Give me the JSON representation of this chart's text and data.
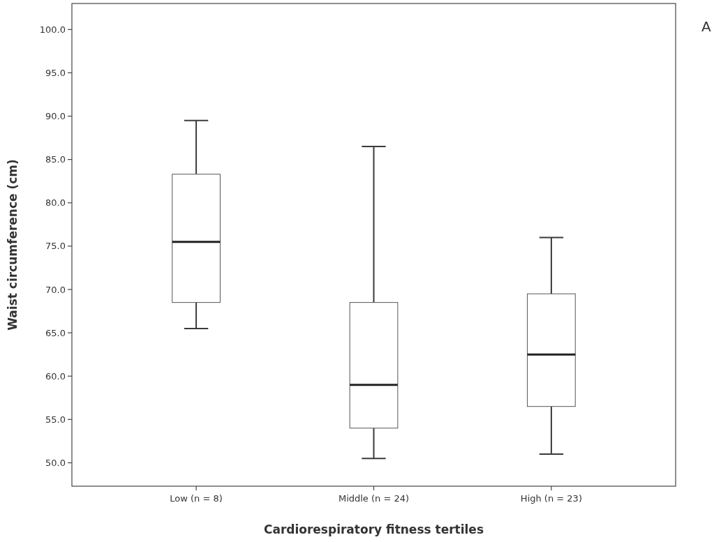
{
  "chart_data": {
    "type": "box",
    "xlabel": "Cardiorespiratory fitness tertiles",
    "ylabel": "Waist circumference (cm)",
    "annotations": [
      "A"
    ],
    "categories": [
      "Low (n = 8)",
      "Middle (n = 24)",
      "High (n = 23)"
    ],
    "boxes": [
      {
        "low": 65.5,
        "q1": 68.5,
        "median": 75.5,
        "q3": 83.3,
        "high": 89.5
      },
      {
        "low": 50.5,
        "q1": 54.0,
        "median": 59.0,
        "q3": 68.5,
        "high": 86.5
      },
      {
        "low": 51.0,
        "q1": 56.5,
        "median": 62.5,
        "q3": 69.5,
        "high": 76.0
      }
    ],
    "color": "#ffffff",
    "ylim": [
      47.3,
      103.0
    ],
    "yticks": [
      {
        "value": 50,
        "label": "50.0"
      },
      {
        "value": 55,
        "label": "55.0"
      },
      {
        "value": 60,
        "label": "60.0"
      },
      {
        "value": 65,
        "label": "65.0"
      },
      {
        "value": 70,
        "label": "70.0"
      },
      {
        "value": 75,
        "label": "75.0"
      },
      {
        "value": 80,
        "label": "80.0"
      },
      {
        "value": 85,
        "label": "85.0"
      },
      {
        "value": 90,
        "label": "90.0"
      },
      {
        "value": 95,
        "label": "95.0"
      },
      {
        "value": 100,
        "label": "100.0"
      }
    ],
    "grid": false
  }
}
